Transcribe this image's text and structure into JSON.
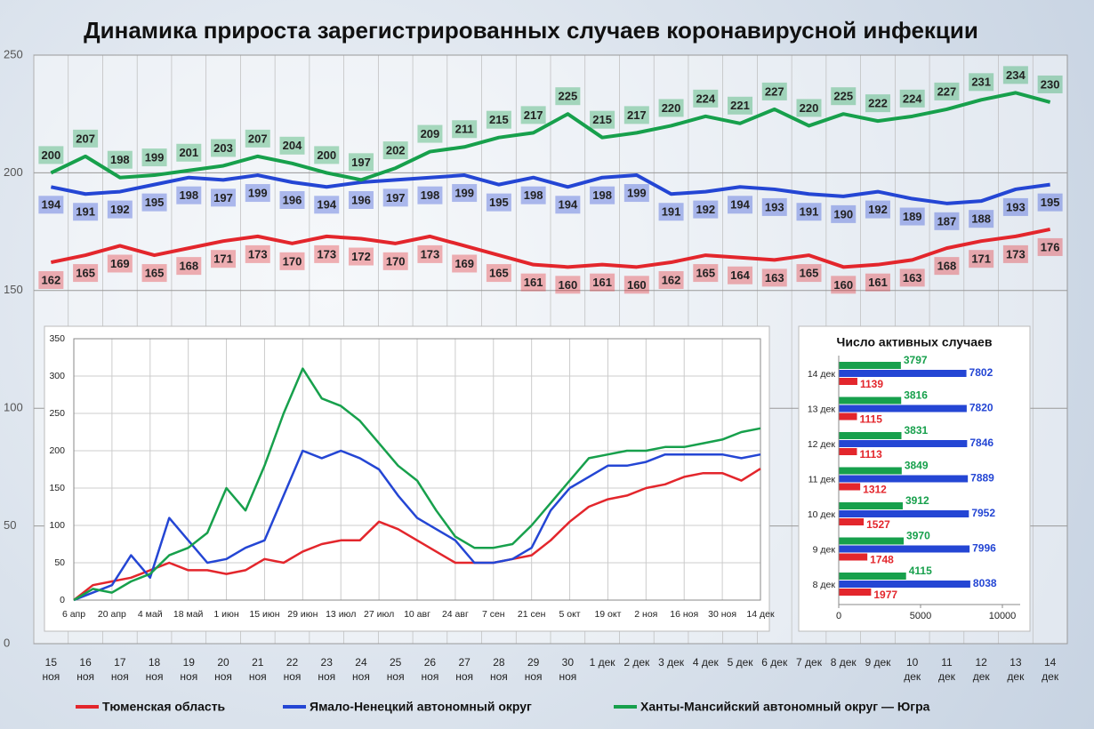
{
  "chart_data": [
    {
      "type": "line",
      "title": "Динамика прироста зарегистрированных случаев коронавирусной инфекции",
      "categories": [
        "15 ноя",
        "16 ноя",
        "17 ноя",
        "18 ноя",
        "19 ноя",
        "20 ноя",
        "21 ноя",
        "22 ноя",
        "23 ноя",
        "24 ноя",
        "25 ноя",
        "26 ноя",
        "27 ноя",
        "28 ноя",
        "29 ноя",
        "30 ноя",
        "1 дек",
        "2 дек",
        "3 дек",
        "4 дек",
        "5 дек",
        "6 дек",
        "7 дек",
        "8 дек",
        "9 дек",
        "10 дек",
        "11 дек",
        "12 дек",
        "13 дек",
        "14 дек"
      ],
      "series": [
        {
          "name": "Тюменская область",
          "color": "#e3262c",
          "values": [
            162,
            165,
            169,
            165,
            168,
            171,
            173,
            170,
            173,
            172,
            170,
            173,
            169,
            165,
            161,
            160,
            161,
            160,
            162,
            165,
            164,
            163,
            165,
            160,
            161,
            163,
            168,
            171,
            173,
            176
          ]
        },
        {
          "name": "Ямало-Ненецкий автономный округ",
          "color": "#2446d4",
          "values": [
            194,
            191,
            192,
            195,
            198,
            197,
            199,
            196,
            194,
            196,
            197,
            198,
            199,
            195,
            198,
            194,
            198,
            199,
            191,
            192,
            194,
            193,
            191,
            190,
            192,
            189,
            187,
            188,
            193,
            195
          ]
        },
        {
          "name": "Ханты-Мансийский автономный округ — Югра",
          "color": "#17a04c",
          "values": [
            200,
            207,
            198,
            199,
            201,
            203,
            207,
            204,
            200,
            197,
            202,
            209,
            211,
            215,
            217,
            225,
            215,
            217,
            220,
            224,
            221,
            227,
            220,
            225,
            222,
            224,
            227,
            231,
            234,
            230
          ]
        }
      ],
      "ylim": [
        0,
        250
      ],
      "yticks": [
        0,
        50,
        100,
        150,
        200,
        250
      ],
      "grid": true
    },
    {
      "type": "line",
      "categories": [
        "6 апр",
        null,
        "20 апр",
        null,
        "4 май",
        null,
        "18 май",
        null,
        "1 июн",
        null,
        "15 июн",
        null,
        "29 июн",
        null,
        "13 июл",
        null,
        "27 июл",
        null,
        "10 авг",
        null,
        "24 авг",
        null,
        "7 сен",
        null,
        "21 сен",
        null,
        "5 окт",
        null,
        "19 окт",
        null,
        "2 ноя",
        null,
        "16 ноя",
        null,
        "30 ноя",
        null,
        "14 дек"
      ],
      "series": [
        {
          "name": "Тюменская область",
          "color": "#e3262c",
          "values": [
            0,
            20,
            25,
            30,
            40,
            50,
            40,
            40,
            35,
            40,
            55,
            50,
            65,
            75,
            80,
            80,
            105,
            95,
            80,
            65,
            50,
            50,
            50,
            55,
            60,
            80,
            105,
            125,
            135,
            140,
            150,
            155,
            165,
            170,
            170,
            160,
            176
          ]
        },
        {
          "name": "Ямало-Ненецкий автономный округ",
          "color": "#2446d4",
          "values": [
            0,
            10,
            20,
            60,
            30,
            110,
            80,
            50,
            55,
            70,
            80,
            140,
            200,
            190,
            200,
            190,
            175,
            140,
            110,
            95,
            80,
            50,
            50,
            55,
            70,
            120,
            150,
            165,
            180,
            180,
            185,
            195,
            195,
            195,
            195,
            190,
            195
          ]
        },
        {
          "name": "Ханты-Мансийский автономный округ — Югра",
          "color": "#17a04c",
          "values": [
            0,
            15,
            10,
            25,
            35,
            60,
            70,
            90,
            150,
            120,
            180,
            250,
            310,
            270,
            260,
            240,
            210,
            180,
            160,
            120,
            85,
            70,
            70,
            75,
            100,
            130,
            160,
            190,
            195,
            200,
            200,
            205,
            205,
            210,
            215,
            225,
            230
          ]
        }
      ],
      "ylim": [
        0,
        350
      ],
      "yticks": [
        0,
        50,
        100,
        150,
        200,
        250,
        300,
        350
      ],
      "grid": true
    },
    {
      "type": "bar",
      "orientation": "horizontal",
      "title": "Число активных случаев",
      "categories": [
        "14 дек",
        "13 дек",
        "12 дек",
        "11 дек",
        "10 дек",
        "9 дек",
        "8 дек"
      ],
      "series": [
        {
          "color": "#17a04c",
          "values": [
            3797,
            3816,
            3831,
            3849,
            3912,
            3970,
            4115
          ]
        },
        {
          "color": "#2446d4",
          "values": [
            7802,
            7820,
            7846,
            7889,
            7952,
            7996,
            8038
          ]
        },
        {
          "color": "#e3262c",
          "values": [
            1139,
            1115,
            1113,
            1312,
            1527,
            1748,
            1977
          ]
        }
      ],
      "xlim": [
        0,
        10000
      ],
      "xticks": [
        0,
        5000,
        10000
      ]
    }
  ]
}
